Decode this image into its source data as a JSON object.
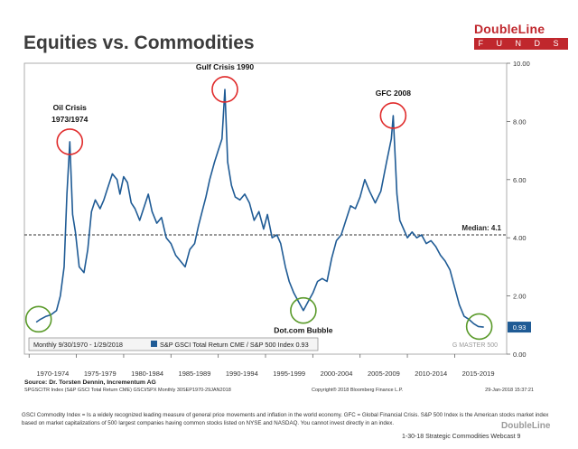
{
  "header": {
    "title": "Equities vs. Commodities"
  },
  "logo": {
    "brand": "DoubleLine",
    "sub": "F U N D S",
    "color": "#c0272d"
  },
  "chart_data": {
    "type": "line",
    "series": [
      {
        "name": "S&P GSCI Total Return CME / S&P 500 Index",
        "color": "#1f5b95",
        "last_value": 0.93,
        "points": [
          [
            1970.75,
            1.1
          ],
          [
            1971.2,
            1.2
          ],
          [
            1971.8,
            1.3
          ],
          [
            1972.3,
            1.35
          ],
          [
            1972.9,
            1.5
          ],
          [
            1973.3,
            2.0
          ],
          [
            1973.7,
            3.0
          ],
          [
            1974.0,
            5.5
          ],
          [
            1974.3,
            7.3
          ],
          [
            1974.6,
            4.8
          ],
          [
            1974.9,
            4.2
          ],
          [
            1975.3,
            3.0
          ],
          [
            1975.8,
            2.8
          ],
          [
            1976.2,
            3.6
          ],
          [
            1976.6,
            4.9
          ],
          [
            1977.0,
            5.3
          ],
          [
            1977.5,
            5.0
          ],
          [
            1977.9,
            5.3
          ],
          [
            1978.3,
            5.7
          ],
          [
            1978.8,
            6.2
          ],
          [
            1979.3,
            6.0
          ],
          [
            1979.6,
            5.5
          ],
          [
            1980.0,
            6.1
          ],
          [
            1980.4,
            5.9
          ],
          [
            1980.8,
            5.2
          ],
          [
            1981.2,
            5.0
          ],
          [
            1981.7,
            4.6
          ],
          [
            1982.2,
            5.1
          ],
          [
            1982.6,
            5.5
          ],
          [
            1983.0,
            4.9
          ],
          [
            1983.5,
            4.5
          ],
          [
            1984.0,
            4.7
          ],
          [
            1984.5,
            4.0
          ],
          [
            1985.0,
            3.8
          ],
          [
            1985.5,
            3.4
          ],
          [
            1986.0,
            3.2
          ],
          [
            1986.5,
            3.0
          ],
          [
            1987.0,
            3.6
          ],
          [
            1987.5,
            3.8
          ],
          [
            1987.9,
            4.4
          ],
          [
            1988.3,
            4.9
          ],
          [
            1988.7,
            5.4
          ],
          [
            1989.1,
            6.0
          ],
          [
            1989.6,
            6.6
          ],
          [
            1990.0,
            7.0
          ],
          [
            1990.4,
            7.4
          ],
          [
            1990.7,
            9.1
          ],
          [
            1991.0,
            6.6
          ],
          [
            1991.4,
            5.8
          ],
          [
            1991.8,
            5.4
          ],
          [
            1992.3,
            5.3
          ],
          [
            1992.8,
            5.5
          ],
          [
            1993.3,
            5.2
          ],
          [
            1993.8,
            4.6
          ],
          [
            1994.3,
            4.9
          ],
          [
            1994.8,
            4.3
          ],
          [
            1995.2,
            4.8
          ],
          [
            1995.7,
            4.0
          ],
          [
            1996.2,
            4.1
          ],
          [
            1996.6,
            3.8
          ],
          [
            1997.1,
            3.0
          ],
          [
            1997.5,
            2.5
          ],
          [
            1998.0,
            2.1
          ],
          [
            1998.5,
            1.8
          ],
          [
            1999.0,
            1.5
          ],
          [
            1999.5,
            1.8
          ],
          [
            2000.0,
            2.1
          ],
          [
            2000.5,
            2.5
          ],
          [
            2001.0,
            2.6
          ],
          [
            2001.5,
            2.5
          ],
          [
            2002.0,
            3.3
          ],
          [
            2002.5,
            3.9
          ],
          [
            2003.0,
            4.1
          ],
          [
            2003.5,
            4.6
          ],
          [
            2004.0,
            5.1
          ],
          [
            2004.5,
            5.0
          ],
          [
            2005.0,
            5.4
          ],
          [
            2005.5,
            6.0
          ],
          [
            2006.0,
            5.6
          ],
          [
            2006.6,
            5.2
          ],
          [
            2007.2,
            5.6
          ],
          [
            2007.8,
            6.6
          ],
          [
            2008.3,
            7.4
          ],
          [
            2008.5,
            8.2
          ],
          [
            2008.9,
            5.5
          ],
          [
            2009.2,
            4.6
          ],
          [
            2009.6,
            4.3
          ],
          [
            2010.0,
            4.0
          ],
          [
            2010.5,
            4.2
          ],
          [
            2011.0,
            4.0
          ],
          [
            2011.5,
            4.1
          ],
          [
            2012.0,
            3.8
          ],
          [
            2012.5,
            3.9
          ],
          [
            2013.0,
            3.7
          ],
          [
            2013.5,
            3.4
          ],
          [
            2014.0,
            3.2
          ],
          [
            2014.5,
            2.9
          ],
          [
            2015.0,
            2.3
          ],
          [
            2015.5,
            1.7
          ],
          [
            2016.0,
            1.3
          ],
          [
            2016.5,
            1.2
          ],
          [
            2017.0,
            1.05
          ],
          [
            2017.5,
            0.95
          ],
          [
            2018.08,
            0.93
          ]
        ]
      }
    ],
    "ylim": [
      0,
      10
    ],
    "yticks": [
      "0.00",
      "2.00",
      "4.00",
      "6.00",
      "8.00",
      "10.00"
    ],
    "xlim": [
      1969.5,
      2020.5
    ],
    "xticks": [
      "1970-1974",
      "1975-1979",
      "1980-1984",
      "1985-1989",
      "1990-1994",
      "1995-1999",
      "2000-2004",
      "2005-2009",
      "2010-2014",
      "2015-2019"
    ],
    "median": {
      "value": 4.1,
      "label": "Median: 4.1"
    },
    "last_label": "0.93",
    "annotations": [
      {
        "label_lines": [
          "Oil Crisis",
          "1973/1974"
        ],
        "x": 1974.3,
        "y": 7.3,
        "ring": "red"
      },
      {
        "label_lines": [
          "Gulf Crisis 1990"
        ],
        "x": 1990.7,
        "y": 9.1,
        "ring": "red"
      },
      {
        "label_lines": [
          "GFC 2008"
        ],
        "x": 2008.5,
        "y": 8.2,
        "ring": "red"
      },
      {
        "label_lines": [
          "Dot.com Bubble"
        ],
        "x": 1999.0,
        "y": 1.5,
        "ring": "green"
      },
      {
        "label_lines": [],
        "x": 1971.0,
        "y": 1.2,
        "ring": "green"
      },
      {
        "label_lines": [],
        "x": 2017.6,
        "y": 0.95,
        "ring": "green"
      }
    ],
    "legend": {
      "range": "Monthly 9/30/1970 - 1/29/2018",
      "entry": "S&P GSCI Total Return CME / S&P 500 Index 0.93",
      "placement": "bottom-left"
    },
    "watermark": "G MASTER 500",
    "source": "Source: Dr. Torsten Dennin, Incrementum AG",
    "meta_left": "SPGSCITR Index (S&P GSCI Total Return CME) GSCI/SPX  Monthly 30SEP1970-29JAN2018",
    "meta_mid": "Copyright® 2018 Bloomberg Finance L.P.",
    "meta_right": "29-Jan-2018 15:37:21"
  },
  "footer": {
    "note": "GSCI Commodity Index = Is a widely recognized leading measure of general price movements and inflation in the world economy. GFC = Global Financial Crisis. S&P 500 Index is the American stocks market index based on market capitalizations of 500 largest companies having common stocks listed on NYSE and NASDAQ. You cannot invest directly in an index.",
    "logo": "DoubleLine",
    "line": "1-30-18 Strategic Commodities Webcast  9"
  }
}
